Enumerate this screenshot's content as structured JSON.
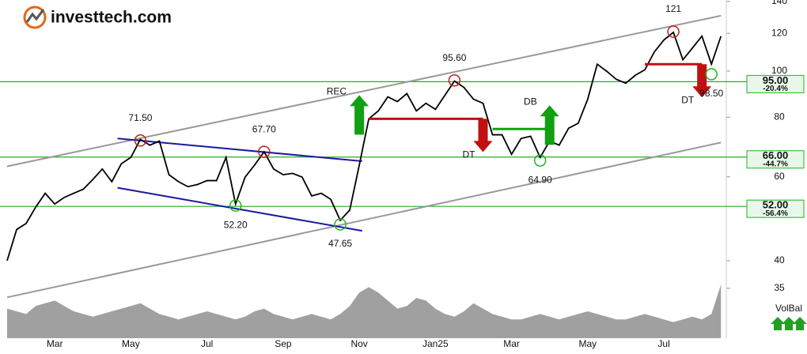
{
  "logo": "investtech.com",
  "chart_data": {
    "type": "line",
    "categories": [
      null,
      null,
      null,
      null,
      null,
      "Mar",
      null,
      null,
      null,
      null,
      null,
      null,
      null,
      "May",
      null,
      null,
      null,
      null,
      null,
      null,
      null,
      "Jul",
      null,
      null,
      null,
      null,
      null,
      null,
      null,
      "Sep",
      null,
      null,
      null,
      null,
      null,
      null,
      null,
      "Nov",
      null,
      null,
      null,
      null,
      null,
      null,
      null,
      "Jan25",
      null,
      null,
      null,
      null,
      null,
      null,
      null,
      "Mar",
      null,
      null,
      null,
      null,
      null,
      null,
      null,
      "May",
      null,
      null,
      null,
      null,
      null,
      null,
      null,
      "Jul",
      null,
      null,
      null,
      null,
      null,
      null
    ],
    "series": [
      {
        "name": "Price",
        "color": "#000000",
        "values": [
          40,
          46.5,
          47.9,
          51.8,
          55.4,
          52.6,
          54.3,
          55.4,
          56.5,
          59.2,
          62.3,
          58.6,
          63.9,
          65.9,
          71.9,
          69.9,
          71.3,
          60.6,
          58.6,
          57.2,
          57.8,
          58.9,
          58.9,
          65.9,
          52.6,
          59.9,
          63.5,
          67.7,
          62.3,
          60.6,
          61,
          59.9,
          54.7,
          55.4,
          53.8,
          48.6,
          51.1,
          63.5,
          79.4,
          82.5,
          88.3,
          86.3,
          89.7,
          82.5,
          85.6,
          83.1,
          89,
          95.3,
          92.4,
          87.3,
          85.6,
          73.5,
          73.5,
          66.9,
          72.2,
          73,
          65.9,
          71.3,
          69.9,
          75.9,
          77.7,
          87.3,
          103.4,
          99.9,
          96.1,
          94.3,
          98,
          100.6,
          109.7,
          116.2,
          120.6,
          105.6,
          111.8,
          118.4,
          103.4,
          118.4
        ]
      },
      {
        "name": "VolBal",
        "color": "#a0a0a0",
        "axis": "y2",
        "values": [
          55,
          50,
          45,
          60,
          65,
          70,
          60,
          50,
          45,
          40,
          45,
          50,
          55,
          60,
          65,
          55,
          45,
          40,
          35,
          40,
          45,
          50,
          45,
          40,
          35,
          40,
          50,
          55,
          45,
          40,
          35,
          40,
          45,
          40,
          35,
          45,
          60,
          85,
          95,
          85,
          70,
          55,
          60,
          75,
          70,
          55,
          45,
          40,
          50,
          65,
          55,
          45,
          40,
          35,
          35,
          40,
          45,
          40,
          35,
          40,
          45,
          50,
          45,
          40,
          35,
          35,
          40,
          45,
          40,
          35,
          30,
          35,
          40,
          35,
          45,
          100
        ]
      }
    ],
    "log_scale": true,
    "ylim": [
      27.5,
      141
    ],
    "yticks": [
      140,
      120,
      100,
      80,
      60,
      40,
      35
    ],
    "y2lim": [
      0,
      100
    ],
    "levels": [
      {
        "value": 95,
        "label": "95.00",
        "change": "-20.4%",
        "color": "#22b022"
      },
      {
        "value": 66,
        "label": "66.00",
        "change": "-44.7%",
        "color": "#22b022"
      },
      {
        "value": 52,
        "label": "52.00",
        "change": "-56.4%",
        "color": "#22b022"
      }
    ],
    "trend_lines": [
      {
        "from": [
          0,
          33.5
        ],
        "to": [
          75,
          70.8
        ],
        "color": "#999999"
      },
      {
        "from": [
          0,
          63.1
        ],
        "to": [
          75,
          130.7
        ],
        "color": "#999999"
      },
      {
        "from": [
          11.6,
          72.2
        ],
        "to": [
          37.3,
          64.7
        ],
        "color": "#1a1aa0"
      },
      {
        "from": [
          11.6,
          56.9
        ],
        "to": [
          37.3,
          46.2
        ],
        "color": "#1a1aa0"
      }
    ],
    "extremes": [
      {
        "at": 14,
        "value": 71.5,
        "label": "71.50",
        "kind": "top"
      },
      {
        "at": 27,
        "value": 67.7,
        "label": "67.70",
        "kind": "top"
      },
      {
        "at": 24,
        "value": 52.2,
        "label": "52.20",
        "kind": "bottom"
      },
      {
        "at": 35,
        "value": 47.65,
        "label": "47.65",
        "kind": "bottom"
      },
      {
        "at": 47,
        "value": 95.6,
        "label": "95.60",
        "kind": "top"
      },
      {
        "at": 56,
        "value": 64.9,
        "label": "64.90",
        "kind": "bottom"
      },
      {
        "at": 70,
        "value": 121,
        "label": "121",
        "kind": "top"
      },
      {
        "at": 74,
        "value": 98.5,
        "label": "98.50",
        "kind": "bottom"
      }
    ],
    "signals": [
      {
        "label": "REC",
        "direction": "up",
        "at": 37,
        "level": 79.4,
        "color": "#12a012"
      },
      {
        "label": "DT",
        "direction": "down",
        "at": 50,
        "level": 79.4,
        "span": [
          38,
          50
        ],
        "color": "#c01010"
      },
      {
        "label": "DB",
        "direction": "up",
        "at": 57,
        "level": 75.6,
        "span": [
          51,
          57
        ],
        "color": "#12a012"
      },
      {
        "label": "DT",
        "direction": "down",
        "at": 73,
        "level": 103.4,
        "span": [
          67,
          73
        ],
        "color": "#c01010"
      }
    ]
  }
}
